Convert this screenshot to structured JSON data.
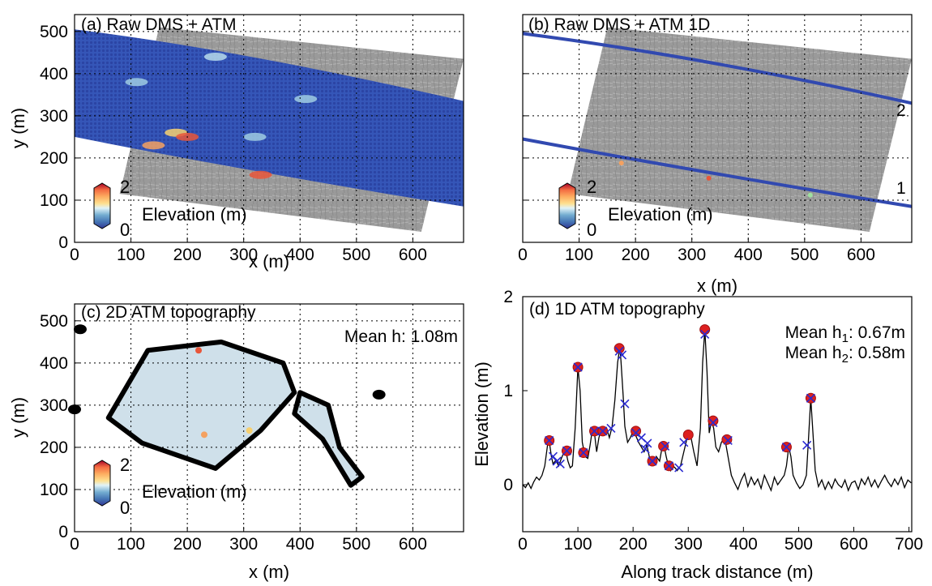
{
  "chart_data": [
    {
      "type": "map",
      "panel": "a",
      "title": "(a) Raw DMS + ATM",
      "xlabel": "x (m)",
      "ylabel": "y (m)",
      "xlim": [
        0,
        690
      ],
      "ylim": [
        0,
        540
      ],
      "xticks": [
        0,
        100,
        200,
        300,
        400,
        500,
        600
      ],
      "yticks": [
        0,
        100,
        200,
        300,
        400,
        500
      ],
      "grid": true,
      "colorbar": {
        "label": "Elevation (m)",
        "min": 0,
        "max": 2,
        "min_label": "0",
        "max_label": "2",
        "colormap": "RdYlBu_r"
      }
    },
    {
      "type": "map",
      "panel": "b",
      "title": "(b) Raw DMS + ATM 1D",
      "xlabel": "x (m)",
      "ylabel": "",
      "xlim": [
        0,
        690
      ],
      "ylim": [
        0,
        540
      ],
      "xticks": [
        0,
        100,
        200,
        300,
        400,
        500,
        600
      ],
      "grid": true,
      "track_labels": [
        "1",
        "2"
      ],
      "colorbar": {
        "label": "Elevation (m)",
        "min": 0,
        "max": 2,
        "min_label": "0",
        "max_label": "2",
        "colormap": "RdYlBu_r"
      }
    },
    {
      "type": "map",
      "panel": "c",
      "title": "(c) 2D ATM topography",
      "xlabel": "x (m)",
      "ylabel": "y (m)",
      "xlim": [
        0,
        690
      ],
      "ylim": [
        0,
        540
      ],
      "xticks": [
        0,
        100,
        200,
        300,
        400,
        500,
        600
      ],
      "yticks": [
        0,
        100,
        200,
        300,
        400,
        500
      ],
      "grid": true,
      "annotation": "Mean h: 1.08m",
      "colorbar": {
        "label": "Elevation (m)",
        "min": 0,
        "max": 2,
        "min_label": "0",
        "max_label": "2",
        "colormap": "RdYlBu_r"
      }
    },
    {
      "type": "line",
      "panel": "d",
      "title": "(d) 1D ATM topography",
      "xlabel": "Along track distance (m)",
      "ylabel": "Elevation (m)",
      "xlim": [
        0,
        705
      ],
      "ylim": [
        -0.5,
        2
      ],
      "xticks": [
        0,
        100,
        200,
        300,
        400,
        500,
        600,
        700
      ],
      "yticks": [
        0,
        1,
        2
      ],
      "grid": false,
      "annotations": [
        {
          "text": "Mean h",
          "sub": "1",
          "suffix": ": 0.67m"
        },
        {
          "text": "Mean h",
          "sub": "2",
          "suffix": ": 0.58m"
        }
      ],
      "series": [
        {
          "role": "profile",
          "color": "#000000",
          "x": [
            0,
            5,
            10,
            15,
            20,
            25,
            30,
            35,
            40,
            45,
            48,
            52,
            55,
            60,
            65,
            70,
            75,
            78,
            82,
            86,
            90,
            95,
            100,
            104,
            108,
            113,
            118,
            122,
            126,
            130,
            134,
            138,
            142,
            147,
            152,
            157,
            162,
            167,
            172,
            176,
            178,
            182,
            185,
            190,
            195,
            200,
            205,
            210,
            215,
            220,
            225,
            230,
            234,
            238,
            242,
            248,
            252,
            256,
            260,
            264,
            268,
            272,
            276,
            280,
            286,
            292,
            298,
            304,
            310,
            316,
            322,
            326,
            330,
            334,
            338,
            342,
            346,
            350,
            355,
            360,
            366,
            372,
            378,
            384,
            390,
            396,
            402,
            408,
            414,
            420,
            426,
            432,
            438,
            444,
            450,
            456,
            462,
            468,
            474,
            478,
            482,
            486,
            490,
            496,
            502,
            508,
            514,
            518,
            522,
            526,
            530,
            536,
            542,
            548,
            554,
            560,
            566,
            572,
            578,
            584,
            590,
            596,
            602,
            608,
            614,
            620,
            626,
            632,
            638,
            644,
            650,
            656,
            662,
            668,
            674,
            680,
            686,
            692,
            698,
            704
          ],
          "y": [
            0.0,
            -0.03,
            0.02,
            -0.04,
            0.03,
            0.08,
            0.05,
            0.1,
            0.2,
            0.42,
            0.46,
            0.3,
            0.22,
            0.26,
            0.2,
            0.28,
            0.35,
            0.36,
            0.25,
            0.18,
            0.2,
            0.6,
            1.25,
            1.0,
            0.45,
            0.3,
            0.28,
            0.42,
            0.58,
            0.55,
            0.35,
            0.5,
            0.58,
            0.55,
            0.6,
            0.5,
            0.62,
            0.9,
            1.3,
            1.46,
            1.32,
            0.95,
            0.62,
            0.45,
            0.5,
            0.57,
            0.52,
            0.45,
            0.4,
            0.35,
            0.42,
            0.28,
            0.22,
            0.25,
            0.3,
            0.25,
            0.38,
            0.42,
            0.3,
            0.2,
            0.15,
            0.2,
            0.18,
            0.15,
            0.2,
            0.35,
            0.5,
            0.53,
            0.35,
            0.2,
            0.6,
            1.3,
            1.65,
            1.2,
            0.55,
            0.68,
            0.6,
            0.4,
            0.35,
            0.45,
            0.5,
            0.3,
            0.1,
            0.02,
            -0.05,
            0.05,
            0.12,
            -0.02,
            0.08,
            0.0,
            0.06,
            -0.04,
            0.1,
            0.02,
            -0.06,
            0.08,
            0.0,
            0.05,
            0.1,
            0.2,
            0.4,
            0.3,
            0.1,
            0.02,
            -0.04,
            0.0,
            0.1,
            0.5,
            0.92,
            0.55,
            0.15,
            -0.02,
            0.05,
            -0.05,
            0.03,
            -0.04,
            0.06,
            0.0,
            -0.03,
            0.05,
            -0.06,
            0.02,
            0.04,
            -0.05,
            0.06,
            0.0,
            0.08,
            -0.02,
            0.05,
            -0.03,
            0.04,
            0.1,
            0.03,
            -0.02,
            0.06,
            0.0,
            0.08,
            -0.03,
            0.05,
            0.02
          ]
        },
        {
          "role": "peaks",
          "marker": "circle",
          "color": "#dd2020",
          "x": [
            48,
            80,
            100,
            110,
            130,
            145,
            175,
            205,
            255,
            265,
            235,
            300,
            330,
            345,
            370,
            478,
            522
          ],
          "y": [
            0.47,
            0.36,
            1.25,
            0.34,
            0.57,
            0.57,
            1.45,
            0.57,
            0.41,
            0.2,
            0.25,
            0.53,
            1.65,
            0.68,
            0.48,
            0.4,
            0.92
          ]
        },
        {
          "role": "threshold",
          "marker": "x",
          "color": "#2a2ad0",
          "x": [
            48,
            55,
            62,
            68,
            80,
            100,
            110,
            130,
            145,
            160,
            175,
            180,
            185,
            205,
            215,
            222,
            226,
            235,
            258,
            265,
            283,
            292,
            330,
            345,
            372,
            478,
            515,
            522
          ],
          "y": [
            0.47,
            0.3,
            0.25,
            0.22,
            0.36,
            1.25,
            0.34,
            0.57,
            0.57,
            0.6,
            1.42,
            1.38,
            0.86,
            0.55,
            0.5,
            0.38,
            0.44,
            0.25,
            0.41,
            0.2,
            0.18,
            0.45,
            1.6,
            0.66,
            0.47,
            0.4,
            0.42,
            0.92
          ]
        }
      ]
    }
  ]
}
